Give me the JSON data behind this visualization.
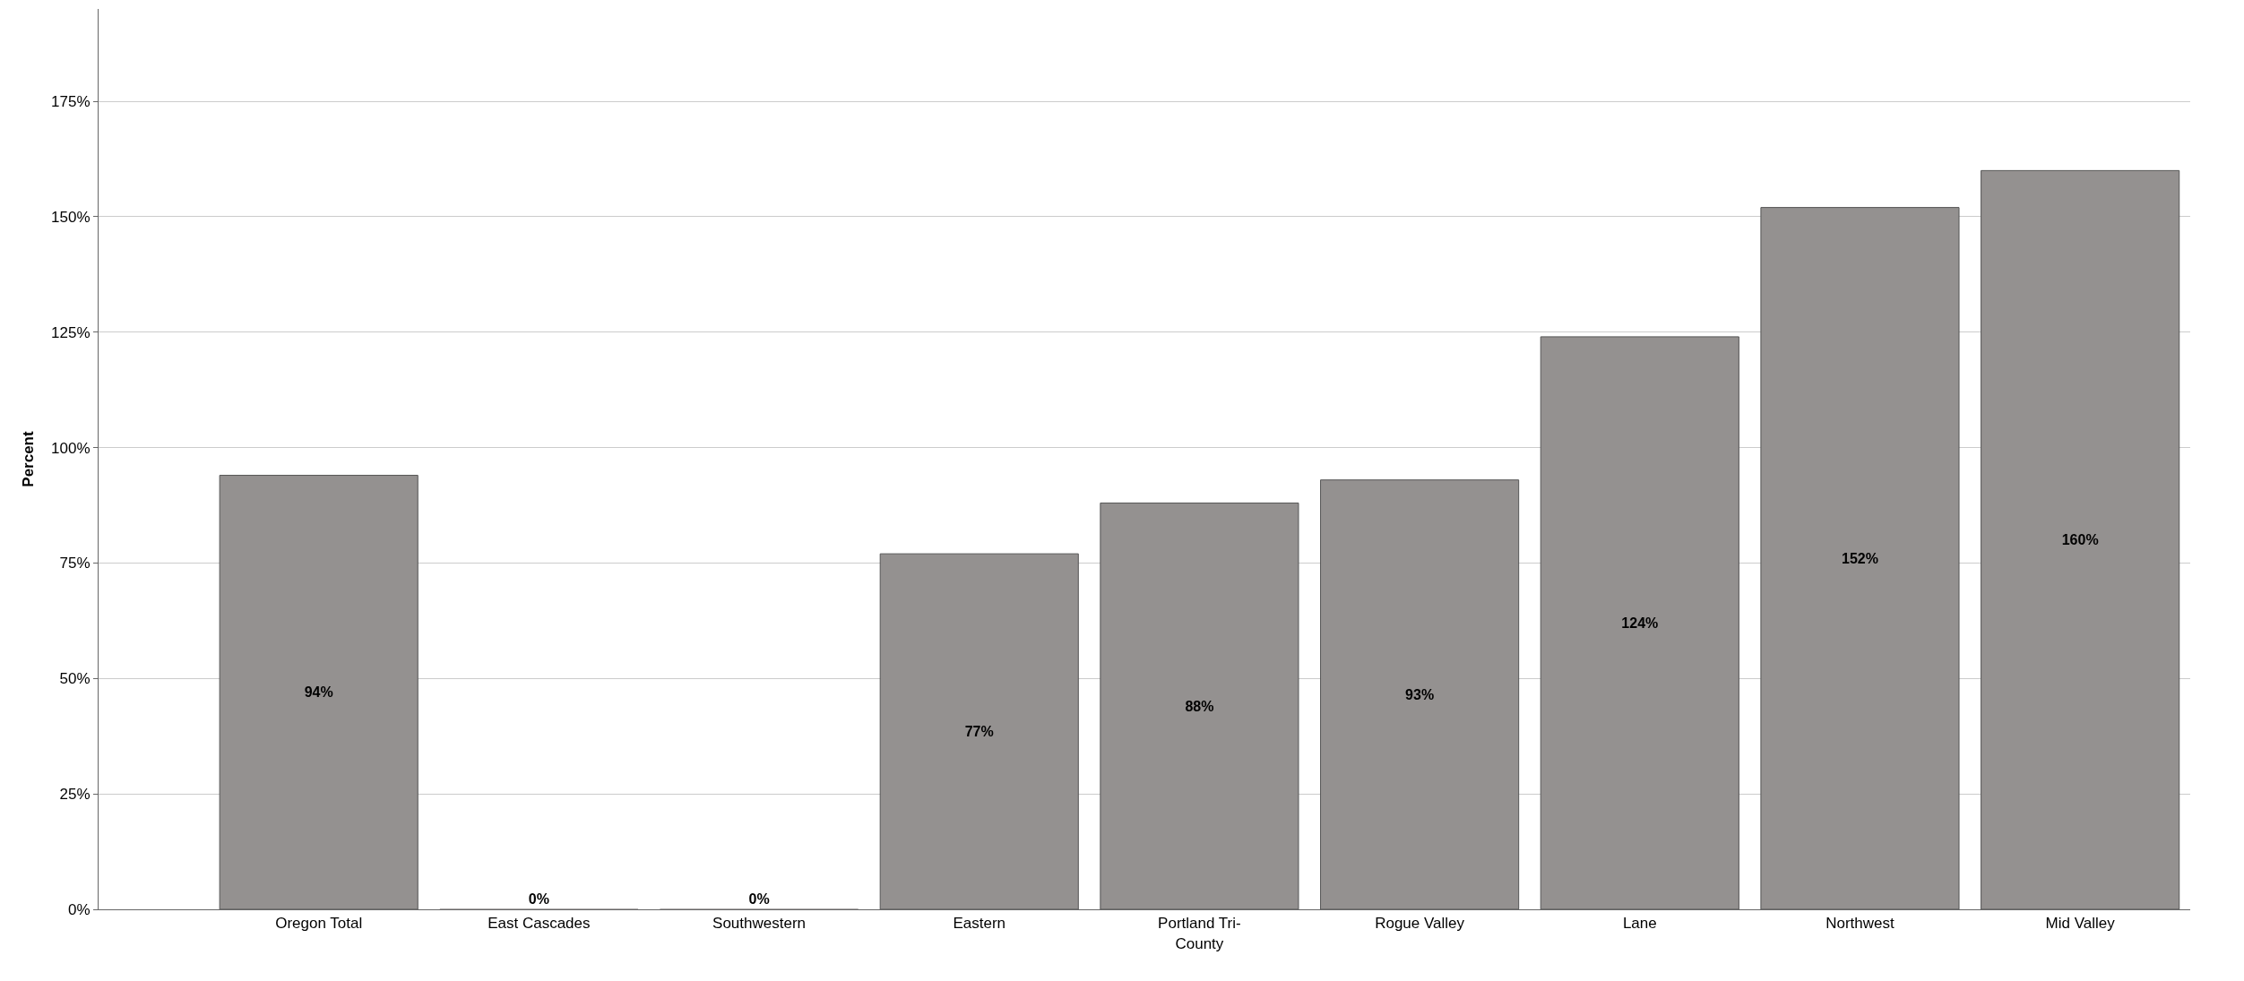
{
  "chart_data": {
    "type": "bar",
    "ylabel": "Percent",
    "categories": [
      "Oregon Total",
      "East Cascades",
      "Southwestern",
      "Eastern",
      "Portland Tri-County",
      "Rogue Valley",
      "Lane",
      "Northwest",
      "Mid Valley"
    ],
    "values": [
      94,
      0,
      0,
      77,
      88,
      93,
      124,
      152,
      160
    ],
    "color": "#949190",
    "value_labels": [
      "94%",
      "0%",
      "0%",
      "77%",
      "88%",
      "93%",
      "124%",
      "152%",
      "160%"
    ],
    "ylim": [
      0,
      195
    ],
    "yticks": [
      {
        "value": 0,
        "label": "0%"
      },
      {
        "value": 25,
        "label": "25%"
      },
      {
        "value": 50,
        "label": "50%"
      },
      {
        "value": 75,
        "label": "75%"
      },
      {
        "value": 100,
        "label": "100%"
      },
      {
        "value": 125,
        "label": "125%"
      },
      {
        "value": 150,
        "label": "150%"
      },
      {
        "value": 175,
        "label": "175%"
      }
    ],
    "grid": "y"
  }
}
